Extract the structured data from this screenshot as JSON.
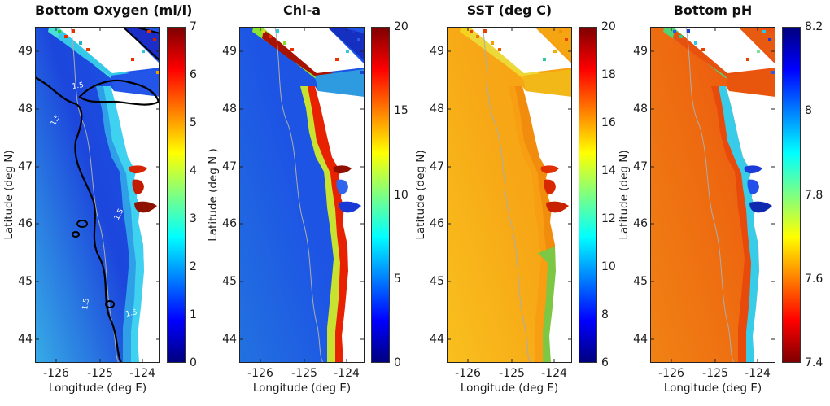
{
  "figure": {
    "background": "#FFFFFF"
  },
  "panels": [
    {
      "title": "Bottom Oxygen (ml/l)",
      "ylabel": "Latitude (deg N)",
      "xlabel": "Longitude (deg E)",
      "yticks": [
        "49",
        "48",
        "47",
        "46",
        "45",
        "44"
      ],
      "xticks": [
        "-126",
        "-125",
        "-124"
      ],
      "contour_label": "1.5",
      "colorbar": {
        "ticks": [
          "7",
          "6",
          "5",
          "4",
          "3",
          "2",
          "1",
          "0"
        ],
        "stops": [
          [
            "#7F0000",
            0
          ],
          [
            "#FF0000",
            12.5
          ],
          [
            "#FFFF00",
            37.5
          ],
          [
            "#7DFF82",
            50
          ],
          [
            "#00FFFF",
            62.5
          ],
          [
            "#0000FF",
            87.5
          ],
          [
            "#00007F",
            100
          ]
        ]
      },
      "map": {
        "ocean_g0": "#37ACE6",
        "ocean_g1": "#1C46DC",
        "ocean_g2": "#1E55E8",
        "coast_outer": "#2FA0E8",
        "coast_inner": "#3ED2F0",
        "nw_strip": "#49E0D8",
        "nw_blob": "#35C8E8",
        "strait": "#2255E8",
        "inland": "#1B2FC8",
        "inland_stroke": "#000000",
        "land": "#FFFFFF",
        "estuary1": "#D42500",
        "estuary2": "#C21B00",
        "estuary3": "#8F1200",
        "south_patch": "none",
        "isobath": "#ACACAC",
        "oxy_contour_color": "#000000",
        "contour_label_color": "#FFFFFF",
        "specks": [
          "#30C830",
          "#E83000",
          "#E83000",
          "#20B8C8",
          "#E04000",
          "#E83000",
          "#C82000",
          "#30C8E0",
          "#E83000",
          "#F0A000"
        ]
      }
    },
    {
      "title": "Chl-a",
      "ylabel": "Latitude (deg N )",
      "xlabel": "Longitude (deg E)",
      "yticks": [
        "49",
        "48",
        "47",
        "46",
        "45",
        "44"
      ],
      "xticks": [
        "-126",
        "-125",
        "-124"
      ],
      "contour_label": "",
      "colorbar": {
        "ticks": [
          "20",
          "15",
          "10",
          "5",
          "0"
        ],
        "stops": [
          [
            "#7F0000",
            0
          ],
          [
            "#FF0000",
            12.5
          ],
          [
            "#FFFF00",
            37.5
          ],
          [
            "#7DFF82",
            50
          ],
          [
            "#00FFFF",
            62.5
          ],
          [
            "#0000FF",
            87.5
          ],
          [
            "#00007F",
            100
          ]
        ]
      },
      "map": {
        "ocean_g0": "#2272E0",
        "ocean_g1": "#1D54E4",
        "ocean_g2": "#1D54E4",
        "coast_outer": "#C8E232",
        "coast_inner": "#E82200",
        "nw_strip": "#8CE430",
        "nw_blob": "#A81200",
        "strait": "#2E9BE0",
        "inland": "#1530C0",
        "inland_stroke": "none",
        "land": "#FFFFFF",
        "estuary1": "#8F1000",
        "estuary2": "#2E66EE",
        "estuary3": "#1A38D6",
        "south_patch": "none",
        "isobath": "#ACACAC",
        "oxy_contour_color": "none",
        "contour_label_color": "transparent",
        "specks": [
          "#F0D020",
          "#E83000",
          "#30C8E0",
          "#80E020",
          "#E83000",
          "#2038D0",
          "#3058E8",
          "#30C8E0",
          "#E83000",
          "#2040D8"
        ]
      }
    },
    {
      "title": "SST (deg C)",
      "ylabel": "Latitude (deg N)",
      "xlabel": "Longitude (deg E)",
      "yticks": [
        "49",
        "48",
        "47",
        "46",
        "45",
        "44"
      ],
      "xticks": [
        "-126",
        "-125",
        "-124"
      ],
      "contour_label": "",
      "colorbar": {
        "ticks": [
          "20",
          "18",
          "16",
          "14",
          "12",
          "10",
          "8",
          "6"
        ],
        "stops": [
          [
            "#7F0000",
            0
          ],
          [
            "#FF0000",
            12.5
          ],
          [
            "#FFFF00",
            37.5
          ],
          [
            "#7DFF82",
            50
          ],
          [
            "#00FFFF",
            62.5
          ],
          [
            "#0000FF",
            87.5
          ],
          [
            "#00007F",
            100
          ]
        ]
      },
      "map": {
        "ocean_g0": "#F8C01E",
        "ocean_g1": "#F7A816",
        "ocean_g2": "#F7A014",
        "coast_outer": "#F79E12",
        "coast_inner": "#F28C0C",
        "nw_strip": "#F5D31E",
        "nw_blob": "#EDD83A",
        "strait": "#F2B818",
        "inland": "#F5A512",
        "inland_stroke": "none",
        "land": "#FFFFFF",
        "estuary1": "#E03000",
        "estuary2": "#D82800",
        "estuary3": "#C82200",
        "south_patch": "#7CC844",
        "isobath": "#ACACAC",
        "oxy_contour_color": "none",
        "contour_label_color": "transparent",
        "specks": [
          "#E84000",
          "#F08000",
          "#E84000",
          "#F0A000",
          "#E86000",
          "#F09000",
          "#E84000",
          "#F0B000",
          "#30C8A0",
          "#F0C000"
        ]
      }
    },
    {
      "title": "Bottom pH",
      "ylabel": "Latitude (deg N)",
      "xlabel": "Longitude (deg E)",
      "yticks": [
        "49",
        "48",
        "47",
        "46",
        "45",
        "44"
      ],
      "xticks": [
        "-126",
        "-125",
        "-124"
      ],
      "contour_label": "",
      "colorbar": {
        "ticks": [
          "8.2",
          "8",
          "7.8",
          "7.6",
          "7.4"
        ],
        "stops": [
          [
            "#00007F",
            0
          ],
          [
            "#0000FF",
            12.5
          ],
          [
            "#00FFFF",
            37.5
          ],
          [
            "#7DFF82",
            50
          ],
          [
            "#FFFF00",
            62.5
          ],
          [
            "#FF0000",
            87.5
          ],
          [
            "#7F0000",
            100
          ]
        ]
      },
      "map": {
        "ocean_g0": "#F08214",
        "ocean_g1": "#EE6A10",
        "ocean_g2": "#EA5210",
        "coast_outer": "#E84A0C",
        "coast_inner": "#38CCE8",
        "nw_strip": "#52D474",
        "nw_blob": "#E8500E",
        "strait": "#E8560E",
        "inland": "#E85A10",
        "inland_stroke": "none",
        "land": "#FFFFFF",
        "estuary1": "#1A3BD8",
        "estuary2": "#2350E8",
        "estuary3": "#0E28B0",
        "south_patch": "none",
        "isobath": "#ACACAC",
        "oxy_contour_color": "none",
        "contour_label_color": "transparent",
        "specks": [
          "#3058E8",
          "#30C880",
          "#2040D8",
          "#30C8E0",
          "#E84000",
          "#30C8E0",
          "#2040D8",
          "#80E0A0",
          "#E84000",
          "#3058E8"
        ]
      }
    }
  ],
  "chart_data": [
    {
      "type": "heatmap",
      "title": "Bottom Oxygen (ml/l)",
      "xlabel": "Longitude (deg E)",
      "ylabel": "Latitude (deg N)",
      "x_ticks": [
        -126,
        -125,
        -124
      ],
      "y_ticks": [
        49,
        48,
        47,
        46,
        45,
        44
      ],
      "lon_range": [
        -126.5,
        -123.6
      ],
      "lat_range": [
        43.6,
        49.4
      ],
      "colormap": "jet",
      "value_range": [
        0,
        7
      ],
      "colorbar_ticks": [
        0,
        1,
        2,
        3,
        4,
        5,
        6,
        7
      ],
      "contour": {
        "level": 1.5,
        "line_color": "black",
        "label_color": "white"
      },
      "representative_values": {
        "offshore_southwest": 2.2,
        "mid_shelf_deep": 1.0,
        "nearshore_coast": 2.8,
        "estuaries": 6.5,
        "strait_of_juan_de_fuca": 1.2
      }
    },
    {
      "type": "heatmap",
      "title": "Chl-a",
      "xlabel": "Longitude (deg E)",
      "ylabel": "Latitude (deg N )",
      "x_ticks": [
        -126,
        -125,
        -124
      ],
      "y_ticks": [
        49,
        48,
        47,
        46,
        45,
        44
      ],
      "lon_range": [
        -126.5,
        -123.6
      ],
      "lat_range": [
        43.6,
        49.4
      ],
      "colormap": "jet",
      "value_range": [
        0,
        20
      ],
      "colorbar_ticks": [
        0,
        5,
        10,
        15,
        20
      ],
      "representative_values": {
        "offshore": 3.5,
        "coastal_band": 18,
        "juan_de_fuca_eddy_bloom": 20,
        "estuaries_columbia": 4
      }
    },
    {
      "type": "heatmap",
      "title": "SST (deg C)",
      "xlabel": "Longitude (deg E)",
      "ylabel": "Latitude (deg N)",
      "x_ticks": [
        -126,
        -125,
        -124
      ],
      "y_ticks": [
        49,
        48,
        47,
        46,
        45,
        44
      ],
      "lon_range": [
        -126.5,
        -123.6
      ],
      "lat_range": [
        43.6,
        49.4
      ],
      "colormap": "jet",
      "value_range": [
        6,
        20
      ],
      "colorbar_ticks": [
        6,
        8,
        10,
        12,
        14,
        16,
        18,
        20
      ],
      "representative_values": {
        "offshore": 15.5,
        "north_nearshore": 14,
        "upwelling_coast_south": 12,
        "estuaries": 18.5
      }
    },
    {
      "type": "heatmap",
      "title": "Bottom pH",
      "xlabel": "Longitude (deg E)",
      "ylabel": "Latitude (deg N)",
      "x_ticks": [
        -126,
        -125,
        -124
      ],
      "y_ticks": [
        49,
        48,
        47,
        46,
        45,
        44
      ],
      "lon_range": [
        -126.5,
        -123.6
      ],
      "lat_range": [
        43.6,
        49.4
      ],
      "colormap": "jet-reversed",
      "value_range": [
        7.4,
        8.2
      ],
      "colorbar_ticks": [
        7.4,
        7.6,
        7.8,
        8.0,
        8.2
      ],
      "representative_values": {
        "offshore": 7.62,
        "mid_shelf": 7.55,
        "nearshore_fringe": 7.9,
        "estuaries": 8.1
      }
    }
  ]
}
